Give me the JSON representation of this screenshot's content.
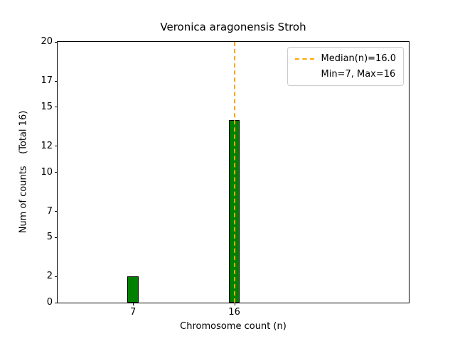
{
  "chart_data": {
    "type": "bar",
    "title": "Veronica aragonensis Stroh",
    "xlabel": "Chromosome count (n)",
    "ylabel": "Num of counts    (Total 16)",
    "categories": [
      7,
      16
    ],
    "values": [
      2,
      14
    ],
    "total_counts": 16,
    "xlim": [
      0.3,
      31.5
    ],
    "ylim": [
      0,
      20
    ],
    "yticks": [
      0,
      2,
      5,
      7,
      10,
      12,
      15,
      17,
      20
    ],
    "bar_width": 1,
    "bar_color": "#008000",
    "bar_edge_color": "#000000",
    "median_line": {
      "x": 16,
      "color": "#ffa500",
      "style": "dashed"
    },
    "legend": {
      "position": "upper right",
      "entries": [
        "Median(n)=16.0",
        "Min=7, Max=16"
      ]
    },
    "grid": false
  }
}
